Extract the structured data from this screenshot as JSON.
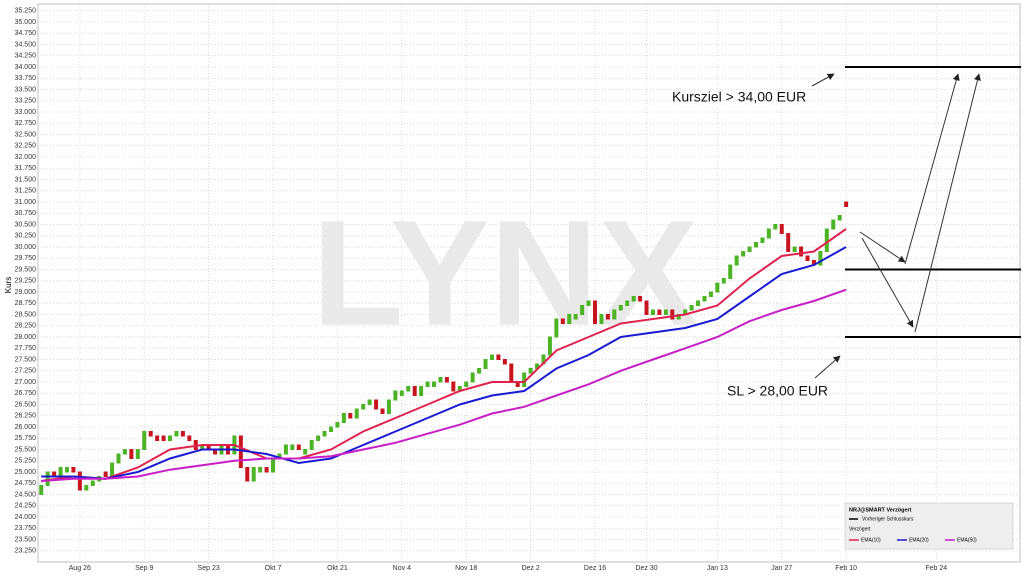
{
  "chart_data": {
    "type": "ohlc",
    "y_label": "Kurs",
    "watermark": "LYNX",
    "xlim": [
      -0.5,
      152
    ],
    "xticks": [
      {
        "value": 6,
        "label": "Aug 26"
      },
      {
        "value": 16,
        "label": "Sep 9"
      },
      {
        "value": 26,
        "label": "Sep 23"
      },
      {
        "value": 36,
        "label": "Okt 7"
      },
      {
        "value": 46,
        "label": "Okt 21"
      },
      {
        "value": 56,
        "label": "Nov 4"
      },
      {
        "value": 66,
        "label": "Nov 18"
      },
      {
        "value": 76,
        "label": "Dez 2"
      },
      {
        "value": 86,
        "label": "Dez 16"
      },
      {
        "value": 94,
        "label": "Dez 30"
      },
      {
        "value": 105,
        "label": "Jan 13"
      },
      {
        "value": 115,
        "label": "Jan 27"
      },
      {
        "value": 125,
        "label": "Feb 10"
      },
      {
        "value": 139,
        "label": "Feb 24"
      }
    ],
    "ylim": [
      23.0,
      35.4
    ],
    "yticks": [
      {
        "value": 23.25,
        "label": "23.250"
      },
      {
        "value": 23.5,
        "label": "23.500"
      },
      {
        "value": 23.75,
        "label": "23.750"
      },
      {
        "value": 24,
        "label": "24.000"
      },
      {
        "value": 24.25,
        "label": "24.250"
      },
      {
        "value": 24.5,
        "label": "24.500"
      },
      {
        "value": 24.75,
        "label": "24.750"
      },
      {
        "value": 25,
        "label": "25.000"
      },
      {
        "value": 25.25,
        "label": "25.250"
      },
      {
        "value": 25.5,
        "label": "25.500"
      },
      {
        "value": 25.75,
        "label": "25.750"
      },
      {
        "value": 26,
        "label": "26.000"
      },
      {
        "value": 26.25,
        "label": "26.250"
      },
      {
        "value": 26.5,
        "label": "26.500"
      },
      {
        "value": 26.75,
        "label": "26.750"
      },
      {
        "value": 27,
        "label": "27.000"
      },
      {
        "value": 27.25,
        "label": "27.250"
      },
      {
        "value": 27.5,
        "label": "27.500"
      },
      {
        "value": 27.75,
        "label": "27.750"
      },
      {
        "value": 28,
        "label": "28.000"
      },
      {
        "value": 28.25,
        "label": "28.250"
      },
      {
        "value": 28.5,
        "label": "28.500"
      },
      {
        "value": 28.75,
        "label": "28.750"
      },
      {
        "value": 29,
        "label": "29.000"
      },
      {
        "value": 29.25,
        "label": "29.250"
      },
      {
        "value": 29.5,
        "label": "29.500"
      },
      {
        "value": 29.75,
        "label": "29.750"
      },
      {
        "value": 30,
        "label": "30.000"
      },
      {
        "value": 30.25,
        "label": "30.250"
      },
      {
        "value": 30.5,
        "label": "30.500"
      },
      {
        "value": 30.75,
        "label": "30.750"
      },
      {
        "value": 31,
        "label": "31.000"
      },
      {
        "value": 31.25,
        "label": "31.250"
      },
      {
        "value": 31.5,
        "label": "31.500"
      },
      {
        "value": 31.75,
        "label": "31.750"
      },
      {
        "value": 32,
        "label": "32.000"
      },
      {
        "value": 32.25,
        "label": "32.250"
      },
      {
        "value": 32.5,
        "label": "32.500"
      },
      {
        "value": 32.75,
        "label": "32.750"
      },
      {
        "value": 33,
        "label": "33.000"
      },
      {
        "value": 33.25,
        "label": "33.250"
      },
      {
        "value": 33.5,
        "label": "33.500"
      },
      {
        "value": 33.75,
        "label": "33.750"
      },
      {
        "value": 34,
        "label": "34.000"
      },
      {
        "value": 34.25,
        "label": "34.250"
      },
      {
        "value": 34.5,
        "label": "34.500"
      },
      {
        "value": 34.75,
        "label": "34.750"
      },
      {
        "value": 35,
        "label": "35.000"
      },
      {
        "value": 35.25,
        "label": "35.250"
      }
    ],
    "grid": true,
    "bars": {
      "up_color": "#4cb424",
      "down_color": "#c8141e",
      "open": [
        24.5,
        24.7,
        25.0,
        24.9,
        25.0,
        25.1,
        25.0,
        24.6,
        24.7,
        24.8,
        25.0,
        24.9,
        25.2,
        25.4,
        25.5,
        25.3,
        25.5,
        25.9,
        25.8,
        25.8,
        25.7,
        25.8,
        25.9,
        25.8,
        25.7,
        25.5,
        25.6,
        25.5,
        25.4,
        25.6,
        25.4,
        25.8,
        25.1,
        24.8,
        25.0,
        25.1,
        25.0,
        25.3,
        25.4,
        25.5,
        25.6,
        25.4,
        25.5,
        25.7,
        25.8,
        25.9,
        26.0,
        26.1,
        26.3,
        26.2,
        26.4,
        26.5,
        26.6,
        26.4,
        26.3,
        26.6,
        26.7,
        26.8,
        26.9,
        26.7,
        26.9,
        26.9,
        27.0,
        27.1,
        27.0,
        26.8,
        26.9,
        27.0,
        27.2,
        27.3,
        27.5,
        27.6,
        27.5,
        27.4,
        27.0,
        26.9,
        27.2,
        27.3,
        27.4,
        27.6,
        28.0,
        28.4,
        28.3,
        28.4,
        28.5,
        28.7,
        28.8,
        28.3,
        28.5,
        28.4,
        28.6,
        28.7,
        28.8,
        28.9,
        28.8,
        28.5,
        28.6,
        28.5,
        28.6,
        28.4,
        28.5,
        28.6,
        28.7,
        28.8,
        28.9,
        29.0,
        29.2,
        29.3,
        29.6,
        29.8,
        29.9,
        30.0,
        30.1,
        30.2,
        30.4,
        30.5,
        30.3,
        29.9,
        30.0,
        29.8,
        29.7,
        29.6,
        29.9,
        30.4,
        30.6,
        31.0
      ],
      "close": [
        24.7,
        25.0,
        24.9,
        25.1,
        25.1,
        25.0,
        24.6,
        24.7,
        24.8,
        24.9,
        24.9,
        25.2,
        25.4,
        25.5,
        25.3,
        25.5,
        25.9,
        25.8,
        25.7,
        25.7,
        25.8,
        25.9,
        25.8,
        25.7,
        25.5,
        25.6,
        25.5,
        25.4,
        25.6,
        25.4,
        25.8,
        25.1,
        24.8,
        25.1,
        25.1,
        25.0,
        25.3,
        25.4,
        25.6,
        25.6,
        25.5,
        25.5,
        25.7,
        25.8,
        25.9,
        26.0,
        26.1,
        26.3,
        26.2,
        26.4,
        26.5,
        26.6,
        26.4,
        26.3,
        26.6,
        26.8,
        26.8,
        26.9,
        26.7,
        26.9,
        27.0,
        27.0,
        27.1,
        27.0,
        26.8,
        26.9,
        27.0,
        27.2,
        27.3,
        27.5,
        27.6,
        27.5,
        27.4,
        27.0,
        26.9,
        27.2,
        27.3,
        27.4,
        27.6,
        28.0,
        28.4,
        28.3,
        28.5,
        28.5,
        28.7,
        28.8,
        28.3,
        28.5,
        28.4,
        28.6,
        28.7,
        28.8,
        28.9,
        28.8,
        28.5,
        28.6,
        28.5,
        28.6,
        28.4,
        28.5,
        28.6,
        28.7,
        28.8,
        28.9,
        29.0,
        29.2,
        29.3,
        29.6,
        29.8,
        29.9,
        30.0,
        30.1,
        30.2,
        30.4,
        30.5,
        30.3,
        29.9,
        30.0,
        29.8,
        29.7,
        29.6,
        29.9,
        30.4,
        30.6,
        30.7,
        30.9
      ]
    },
    "series": [
      {
        "name": "EMA(10)",
        "color": "#e0234e",
        "x": [
          0,
          5,
          10,
          15,
          20,
          25,
          30,
          35,
          40,
          45,
          50,
          55,
          60,
          65,
          70,
          75,
          80,
          85,
          90,
          95,
          100,
          105,
          110,
          115,
          120,
          125
        ],
        "values": [
          24.8,
          24.9,
          24.85,
          25.1,
          25.5,
          25.6,
          25.6,
          25.3,
          25.3,
          25.5,
          25.9,
          26.2,
          26.5,
          26.8,
          27.0,
          27.0,
          27.7,
          28.0,
          28.3,
          28.4,
          28.5,
          28.7,
          29.3,
          29.8,
          29.9,
          30.4
        ]
      },
      {
        "name": "EMA(20)",
        "color": "#1a1ad2",
        "x": [
          0,
          5,
          10,
          15,
          20,
          25,
          30,
          35,
          40,
          45,
          50,
          55,
          60,
          65,
          70,
          75,
          80,
          85,
          90,
          95,
          100,
          105,
          110,
          115,
          120,
          125
        ],
        "values": [
          24.9,
          24.9,
          24.85,
          25.0,
          25.3,
          25.5,
          25.5,
          25.4,
          25.2,
          25.3,
          25.6,
          25.9,
          26.2,
          26.5,
          26.7,
          26.8,
          27.3,
          27.6,
          28.0,
          28.1,
          28.2,
          28.4,
          28.9,
          29.4,
          29.6,
          30.0
        ]
      },
      {
        "name": "EMA(50)",
        "color": "#c81ec8",
        "x": [
          0,
          5,
          10,
          15,
          20,
          25,
          30,
          35,
          40,
          45,
          50,
          55,
          60,
          65,
          70,
          75,
          80,
          85,
          90,
          95,
          100,
          105,
          110,
          115,
          120,
          125
        ],
        "values": [
          24.8,
          24.85,
          24.85,
          24.9,
          25.05,
          25.15,
          25.25,
          25.3,
          25.3,
          25.35,
          25.5,
          25.65,
          25.85,
          26.05,
          26.3,
          26.45,
          26.7,
          26.95,
          27.25,
          27.5,
          27.75,
          28.0,
          28.35,
          28.6,
          28.8,
          29.05
        ]
      }
    ],
    "levels": [
      34.0,
      29.5,
      28.0
    ],
    "annotations": [
      "Kursziel > 34,00 EUR",
      "SL > 28,00 EUR"
    ],
    "legend": {
      "title": "NRJ@SMART Verzögert",
      "previous_close": "Vorheriger Schlusskurs",
      "status": "Verzögert"
    }
  }
}
